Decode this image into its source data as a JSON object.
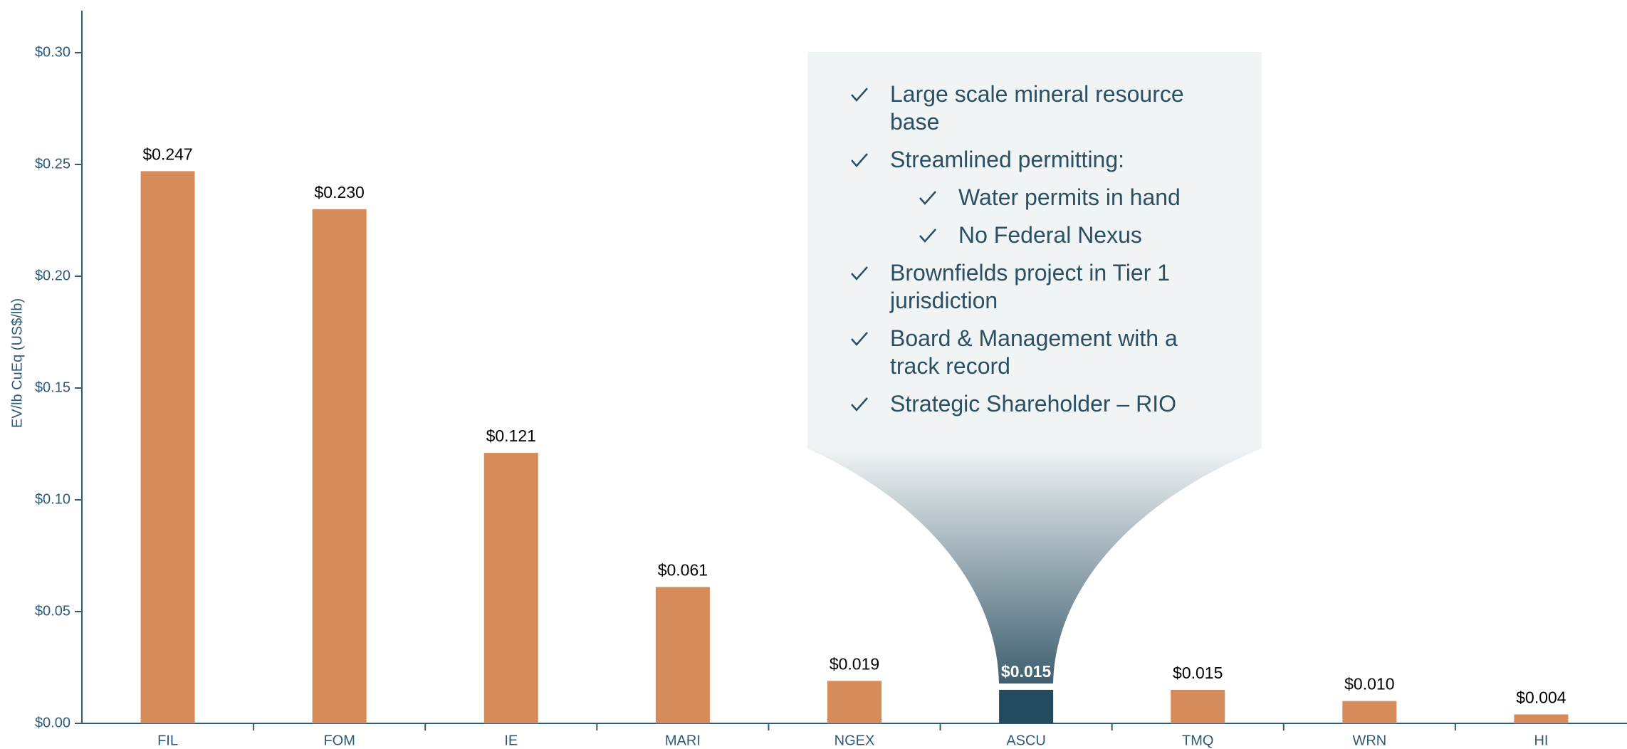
{
  "chart_data": {
    "type": "bar",
    "y_label": "EV/lb CuEq (US$/lb)",
    "categories": [
      "FIL",
      "FOM",
      "IE",
      "MARI",
      "NGEX",
      "ASCU",
      "TMQ",
      "WRN",
      "HI"
    ],
    "values": [
      0.247,
      0.23,
      0.121,
      0.061,
      0.019,
      0.015,
      0.015,
      0.01,
      0.004
    ],
    "value_labels": [
      "$0.247",
      "$0.230",
      "$0.121",
      "$0.061",
      "$0.019",
      "$0.015",
      "$0.015",
      "$0.010",
      "$0.004"
    ],
    "colors": [
      "#d68b5a",
      "#d68b5a",
      "#d68b5a",
      "#d68b5a",
      "#d68b5a",
      "#244a5e",
      "#d68b5a",
      "#d68b5a",
      "#d68b5a"
    ],
    "ylim": [
      0,
      0.3
    ],
    "yticks": [
      {
        "value": 0,
        "label": "$0.00"
      },
      {
        "value": 0.05,
        "label": "$0.05"
      },
      {
        "value": 0.1,
        "label": "$0.10"
      },
      {
        "value": 0.15,
        "label": "$0.15"
      },
      {
        "value": 0.2,
        "label": "$0.20"
      },
      {
        "value": 0.25,
        "label": "$0.25"
      },
      {
        "value": 0.3,
        "label": "$0.30"
      }
    ],
    "callout": {
      "items": [
        {
          "text": "Large scale mineral resource base",
          "level": 1
        },
        {
          "text": "Streamlined permitting:",
          "level": 1
        },
        {
          "text": "Water permits in hand",
          "level": 2
        },
        {
          "text": "No Federal Nexus",
          "level": 2
        },
        {
          "text": "Brownfields project in Tier 1 jurisdiction",
          "level": 1
        },
        {
          "text": "Board & Management with a track record",
          "level": 1
        },
        {
          "text": "Strategic Shareholder – RIO",
          "level": 1
        }
      ]
    }
  }
}
